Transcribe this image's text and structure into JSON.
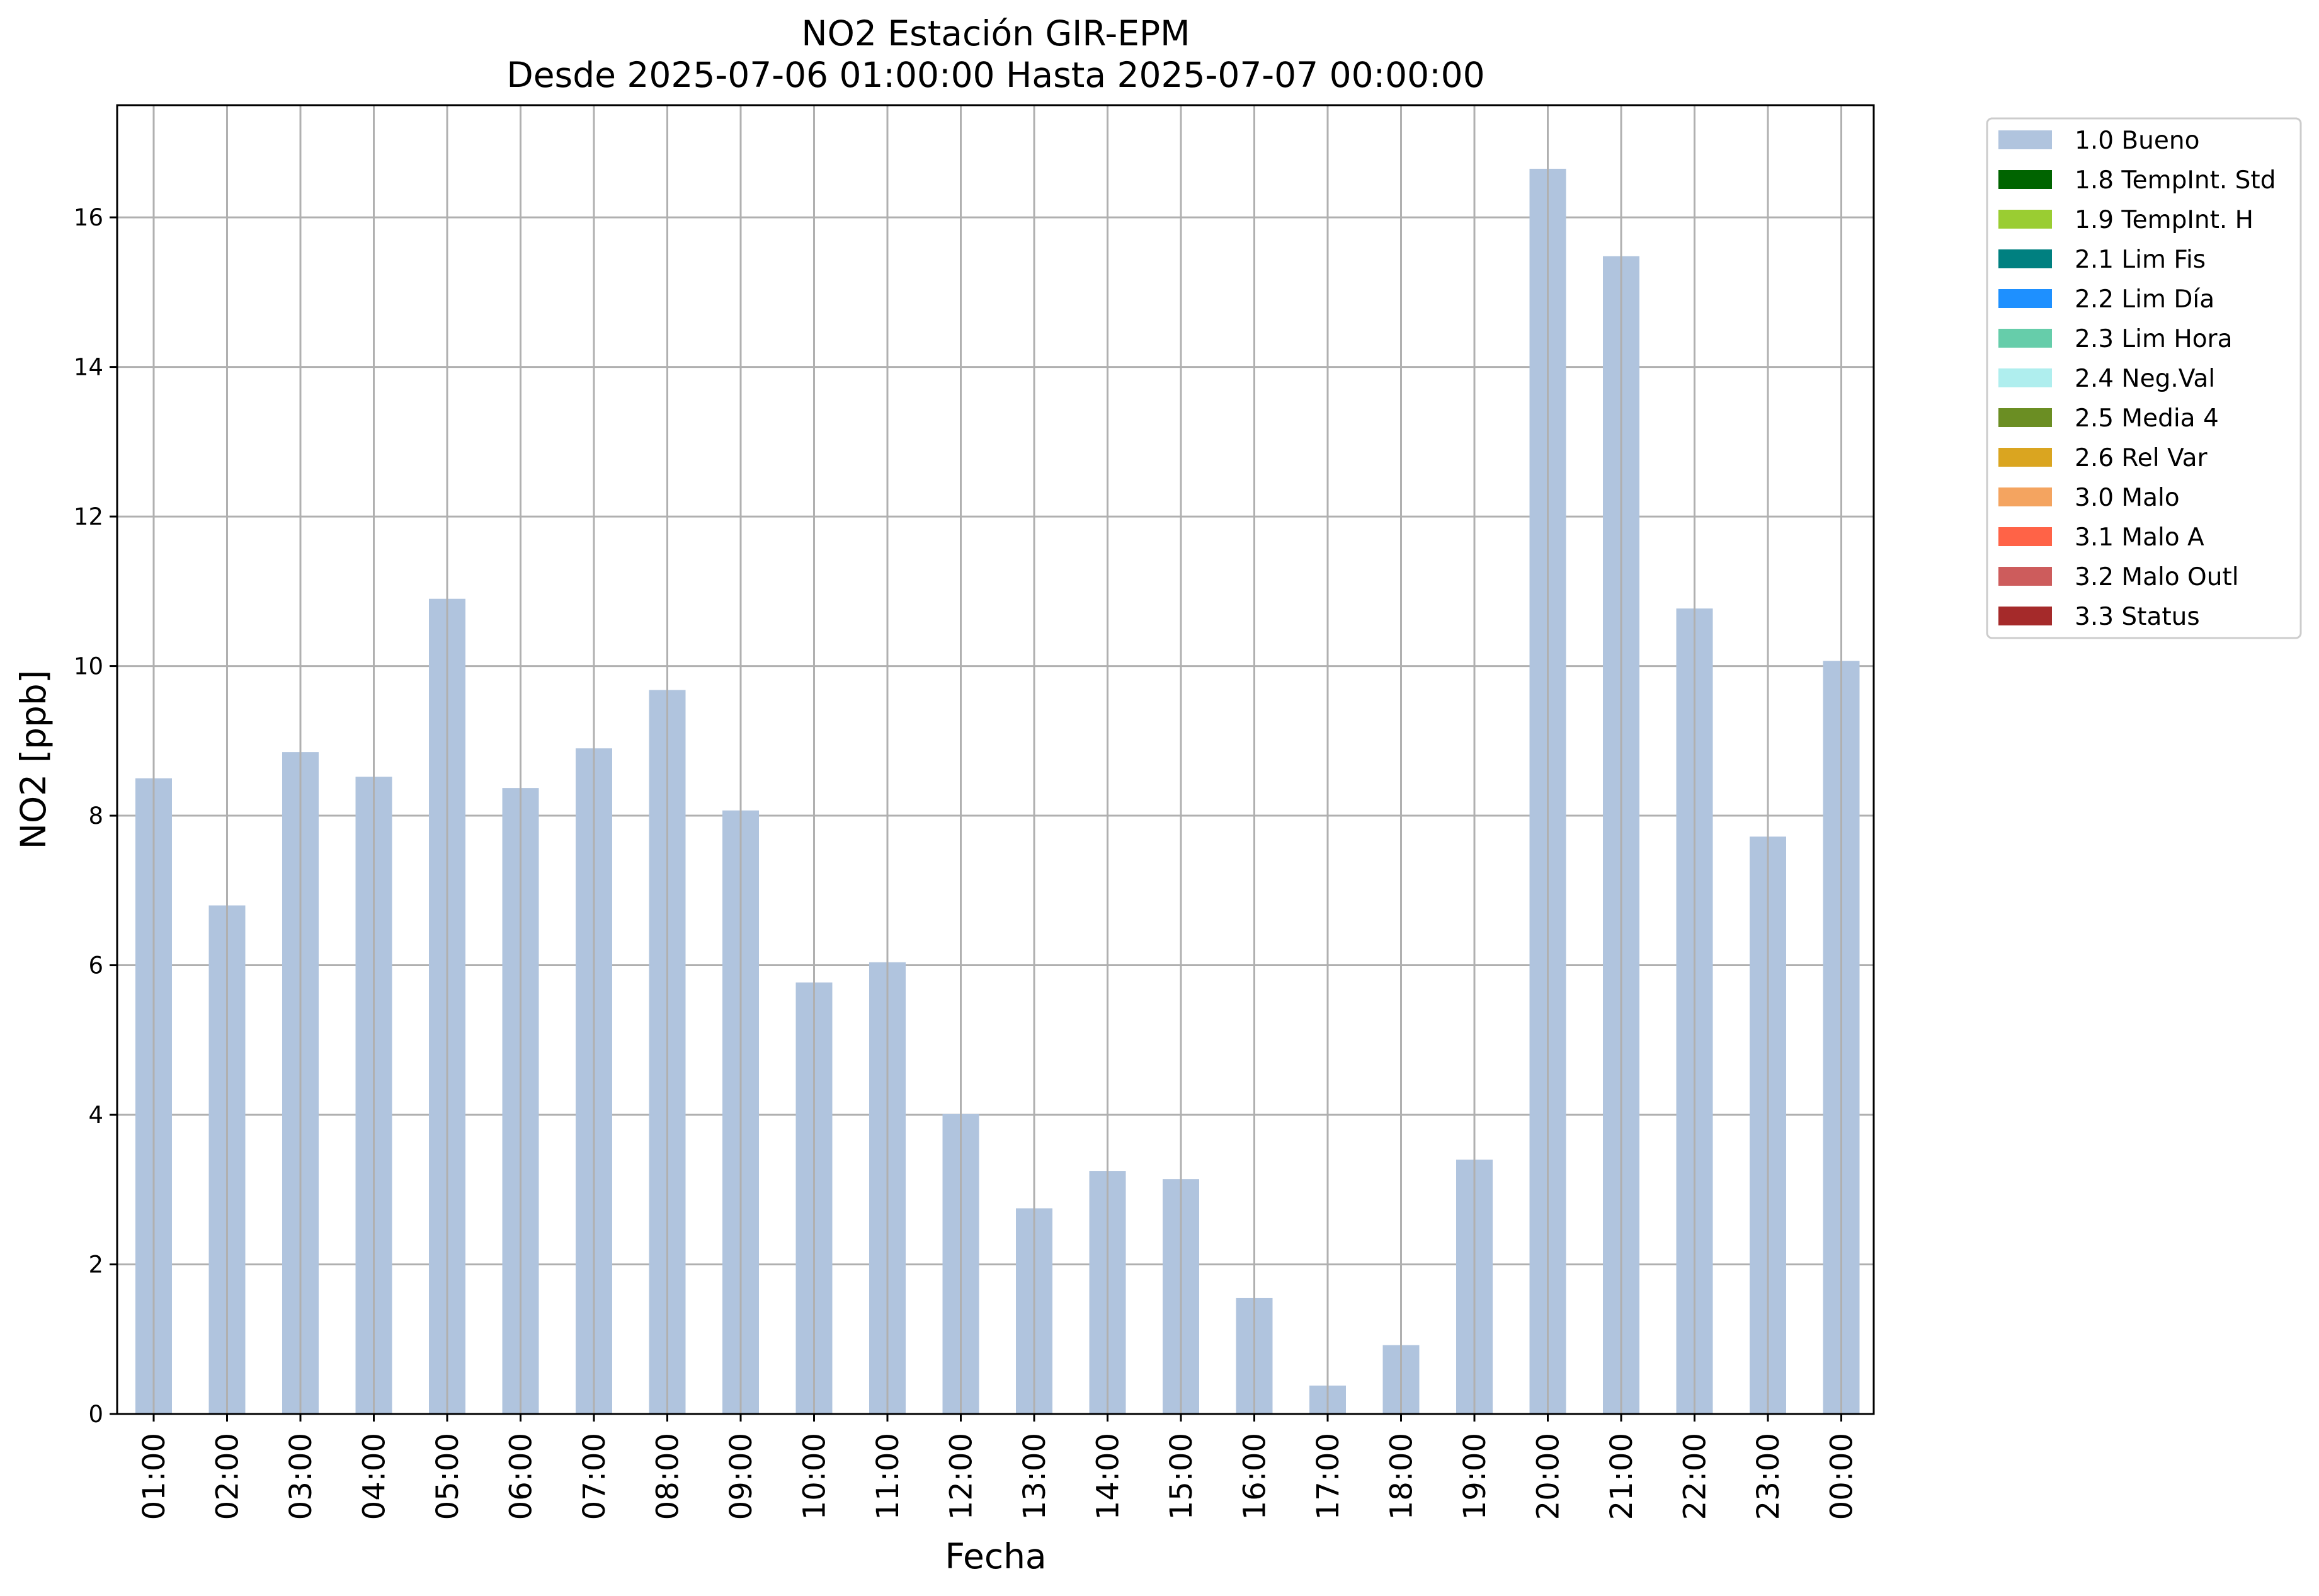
{
  "chart_data": {
    "type": "bar",
    "title": "NO2 Estación GIR-EPM",
    "subtitle": "Desde 2025-07-06 01:00:00 Hasta 2025-07-07 00:00:00",
    "xlabel": "Fecha",
    "ylabel": "NO2 [ppb]",
    "ylim": [
      0,
      17.5
    ],
    "yticks": [
      0,
      2,
      4,
      6,
      8,
      10,
      12,
      14,
      16
    ],
    "grid": true,
    "legend_position": "outside-top-right",
    "categories": [
      "01:00",
      "02:00",
      "03:00",
      "04:00",
      "05:00",
      "06:00",
      "07:00",
      "08:00",
      "09:00",
      "10:00",
      "11:00",
      "12:00",
      "13:00",
      "14:00",
      "15:00",
      "16:00",
      "17:00",
      "18:00",
      "19:00",
      "20:00",
      "21:00",
      "22:00",
      "23:00",
      "00:00"
    ],
    "series": [
      {
        "name": "1.0 Bueno",
        "color": "#b0c4de",
        "values": [
          8.5,
          6.8,
          8.85,
          8.52,
          10.9,
          8.37,
          8.9,
          9.68,
          8.07,
          5.77,
          6.04,
          4.01,
          2.75,
          3.25,
          3.14,
          1.55,
          0.38,
          0.92,
          3.4,
          16.65,
          15.48,
          10.77,
          7.72,
          10.07
        ]
      }
    ],
    "legend": [
      {
        "label": "1.0 Bueno",
        "color": "#b0c4de"
      },
      {
        "label": "1.8 TempInt. Std",
        "color": "#006400"
      },
      {
        "label": "1.9 TempInt. H",
        "color": "#9acd32"
      },
      {
        "label": "2.1 Lim Fis",
        "color": "#008080"
      },
      {
        "label": "2.2 Lim Día",
        "color": "#1e90ff"
      },
      {
        "label": "2.3 Lim Hora",
        "color": "#66cdaa"
      },
      {
        "label": "2.4 Neg.Val",
        "color": "#afeeee"
      },
      {
        "label": "2.5 Media 4",
        "color": "#6b8e23"
      },
      {
        "label": "2.6 Rel Var",
        "color": "#daa520"
      },
      {
        "label": "3.0 Malo",
        "color": "#f4a460"
      },
      {
        "label": "3.1 Malo A",
        "color": "#ff6347"
      },
      {
        "label": "3.2 Malo Outl",
        "color": "#cd5c5c"
      },
      {
        "label": "3.3 Status",
        "color": "#a52a2a"
      }
    ]
  }
}
